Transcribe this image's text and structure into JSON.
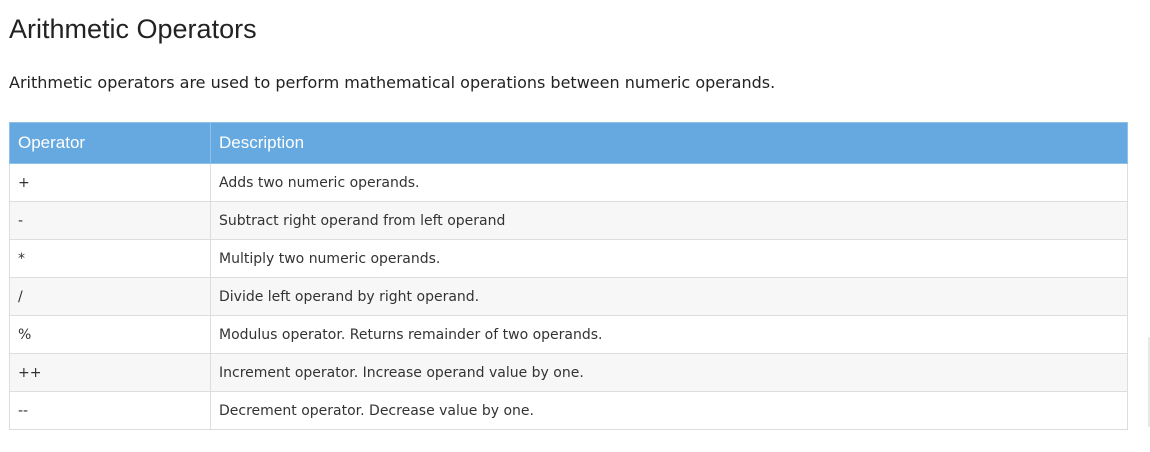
{
  "title": "Arithmetic Operators",
  "intro": "Arithmetic operators are used to perform mathematical operations between numeric operands.",
  "table": {
    "headers": [
      "Operator",
      "Description"
    ],
    "rows": [
      {
        "operator": "+",
        "description": "Adds two numeric operands."
      },
      {
        "operator": "-",
        "description": "Subtract right operand from left operand"
      },
      {
        "operator": "*",
        "description": "Multiply two numeric operands."
      },
      {
        "operator": "/",
        "description": "Divide left operand by right operand."
      },
      {
        "operator": "%",
        "description": "Modulus operator. Returns remainder of two operands."
      },
      {
        "operator": "++",
        "description": "Increment operator. Increase operand value by one."
      },
      {
        "operator": "--",
        "description": "Decrement operator. Decrease value by one."
      }
    ]
  },
  "colors": {
    "header_background": "#65a9e0",
    "header_text": "#ffffff",
    "row_alt_background": "#f7f7f7",
    "border": "#dddddd"
  }
}
